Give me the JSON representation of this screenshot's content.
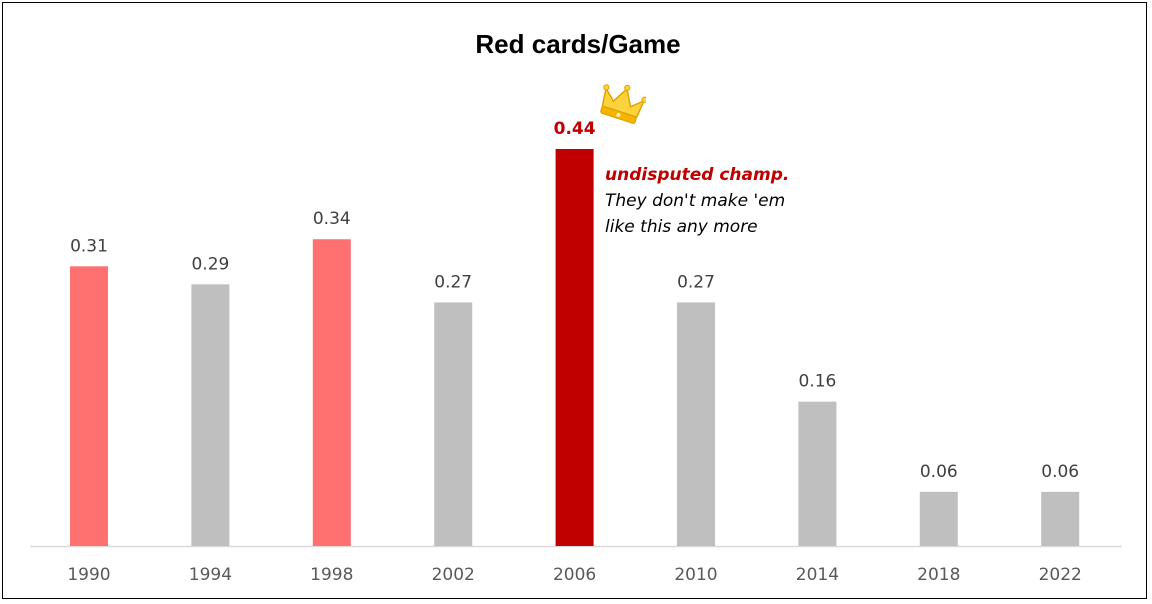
{
  "chart_data": {
    "type": "bar",
    "title": "Red cards/Game",
    "xlabel": "",
    "ylabel": "",
    "categories": [
      "1990",
      "1994",
      "1998",
      "2002",
      "2006",
      "2010",
      "2014",
      "2018",
      "2022"
    ],
    "values": [
      0.31,
      0.29,
      0.34,
      0.27,
      0.44,
      0.27,
      0.16,
      0.06,
      0.06
    ],
    "value_labels": [
      "0.31",
      "0.29",
      "0.34",
      "0.27",
      "0.44",
      "0.27",
      "0.16",
      "0.06",
      "0.06"
    ],
    "ylim": [
      0,
      0.44
    ],
    "grid": false,
    "colors": {
      "default": "#bfbfbf",
      "highlight": "#ff7171",
      "champion": "#c00000",
      "axis": "#d9d9d9"
    },
    "highlight_indices": [
      0,
      2
    ],
    "champion_index": 4,
    "annotation": {
      "emphasis": "undisputed champ.",
      "line1": "They don't make 'em",
      "line2": "like this any more",
      "icon": "crown-icon"
    }
  }
}
